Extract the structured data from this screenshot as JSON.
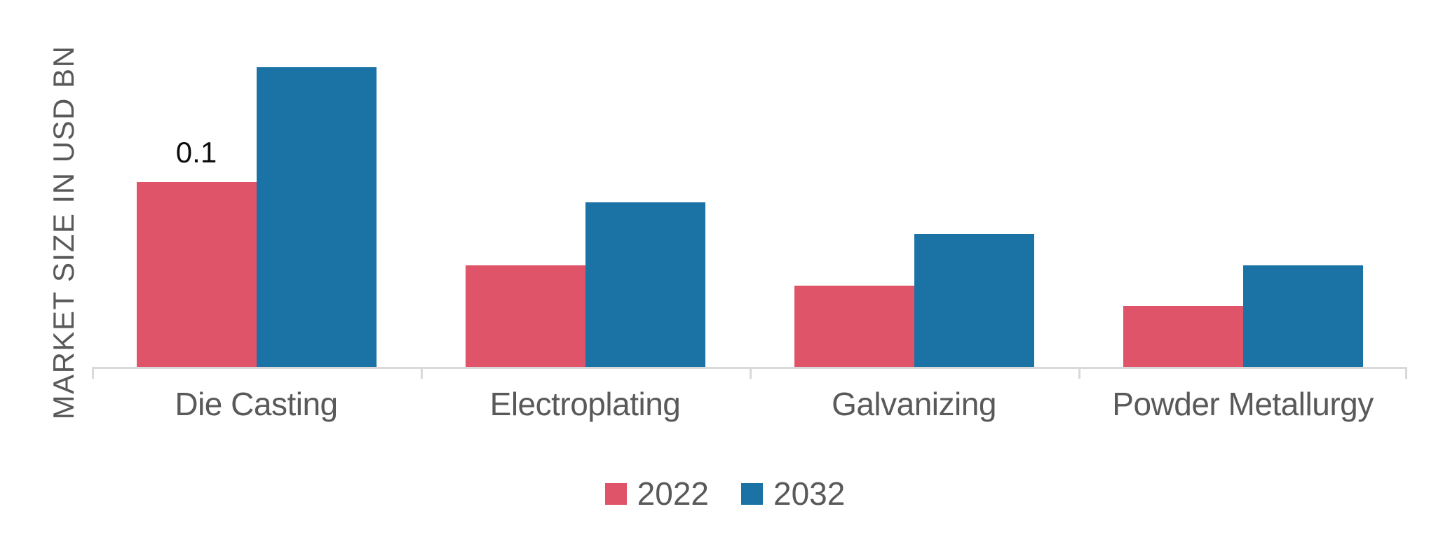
{
  "page": {
    "background": "#ffffff"
  },
  "chart_data": {
    "type": "bar",
    "title": "",
    "xlabel": "",
    "ylabel": "MARKET SIZE IN USD BN",
    "categories": [
      "Die Casting",
      "Electroplating",
      "Galvanizing",
      "Powder Metallurgy"
    ],
    "series": [
      {
        "name": "2022",
        "color": "#DF5468",
        "values": [
          0.1,
          0.055,
          0.044,
          0.033
        ]
      },
      {
        "name": "2032",
        "color": "#1B73A5",
        "values": [
          0.162,
          0.089,
          0.072,
          0.055
        ]
      }
    ],
    "data_labels": [
      {
        "series": "2022",
        "category": "Die Casting",
        "text": "0.1"
      }
    ],
    "ylim": [
      0,
      0.17
    ],
    "y_axis_ticks_visible": false,
    "grid": false,
    "legend_position": "bottom",
    "axis_line_color": "#D9D9D9",
    "text_color": "#595959",
    "data_label_color": "#0d0d0d"
  }
}
